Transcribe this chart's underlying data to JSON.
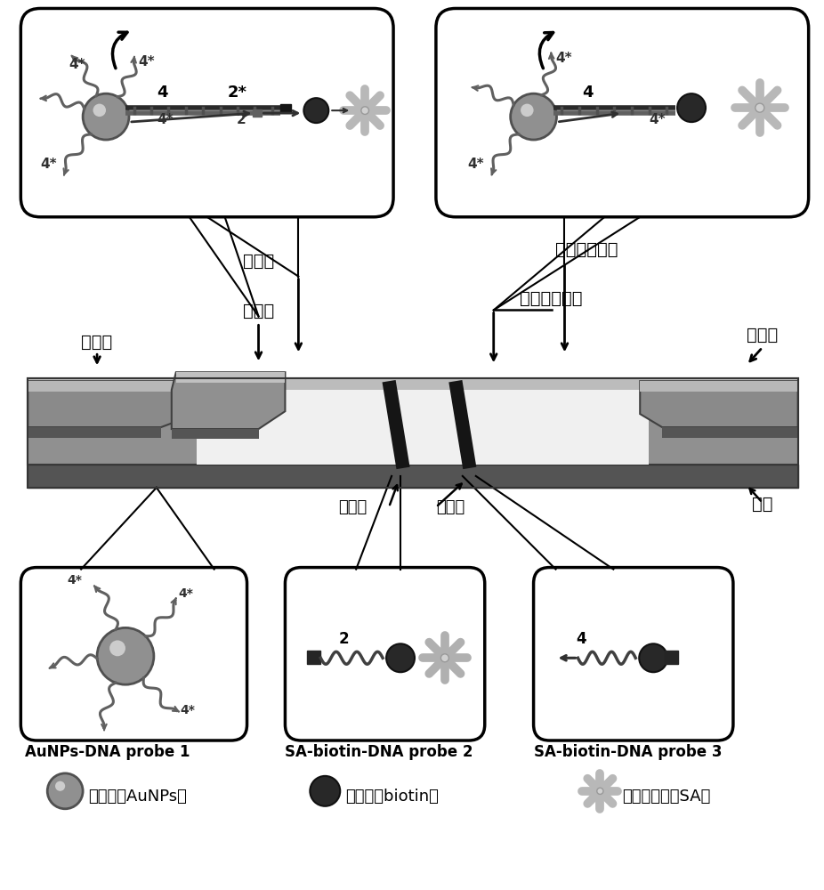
{
  "labels": {
    "sample_pad": "样品垫",
    "gold_pad": "金标垫",
    "nc_membrane": "确酸纤维素膜",
    "absorbent_pad": "吸水纸",
    "detection_zone": "检测区",
    "control_zone": "质控区",
    "backing_card": "胶板",
    "probe1_label": "AuNPs-DNA probe 1",
    "probe2_label": "SA-biotin-DNA probe 2",
    "probe3_label": "SA-biotin-DNA probe 3",
    "aunps_label": "胶体金（AuNPs）",
    "biotin_label": "生物素（biotin）",
    "sa_label": "链震亲和素（SA）"
  },
  "colors": {
    "bg": "#ffffff",
    "strip_mid": "#909090",
    "strip_dark": "#505050",
    "strip_light": "#b0b0b0",
    "strip_top": "#c0c0c0",
    "strip_white": "#f8f8f8",
    "black_line": "#1a1a1a",
    "aunp_fill": "#909090",
    "aunp_edge": "#505050",
    "biotin_fill": "#282828",
    "sa_color": "#b8b8b8",
    "dna_color": "#404040",
    "arrow_dark": "#303030",
    "box_border": "#000000",
    "pad_gray": "#959595",
    "pad_dark": "#606060"
  }
}
